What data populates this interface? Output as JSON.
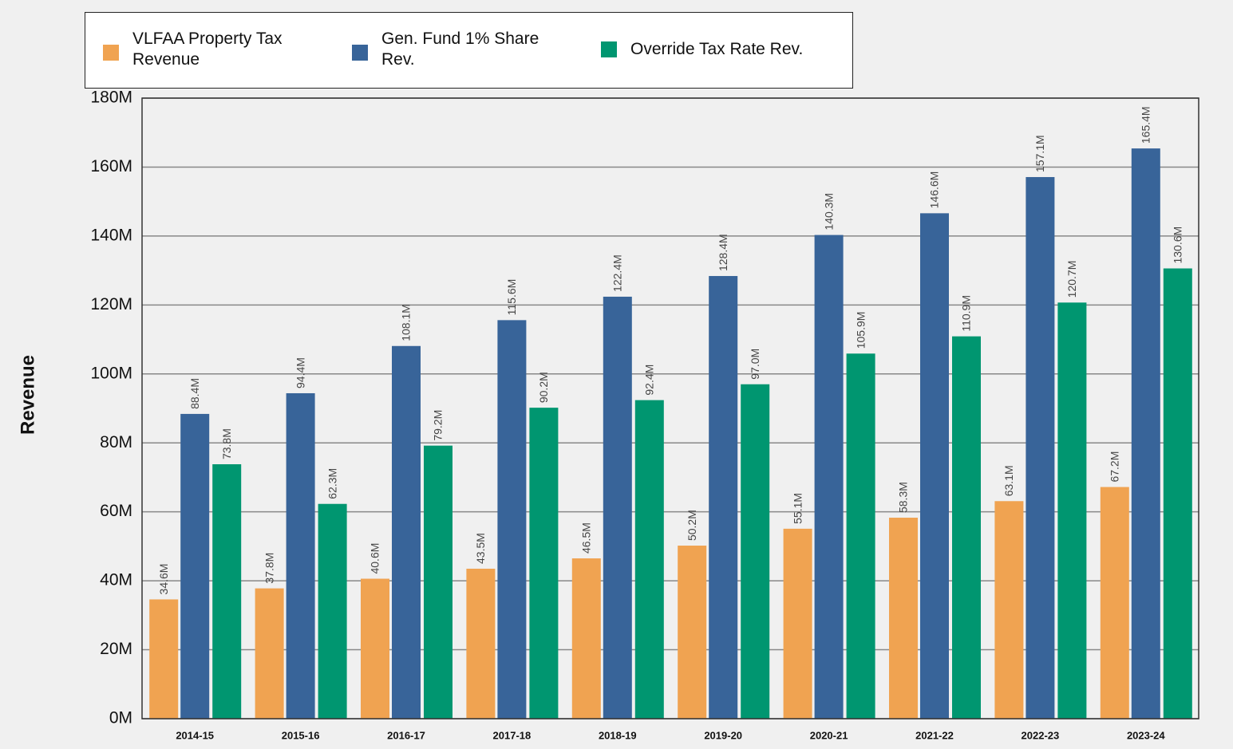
{
  "chart_data": {
    "type": "bar",
    "ylabel": "Revenue",
    "categories": [
      "2014-15",
      "2015-16",
      "2016-17",
      "2017-18",
      "2018-19",
      "2019-20",
      "2020-21",
      "2021-22",
      "2022-23",
      "2023-24"
    ],
    "series": [
      {
        "name": "VLFAA Property Tax Revenue",
        "color": "#f0a351",
        "values": [
          34.6,
          37.8,
          40.6,
          43.5,
          46.5,
          50.2,
          55.1,
          58.3,
          63.1,
          67.2
        ],
        "value_labels": [
          "34.6M",
          "37.8M",
          "40.6M",
          "43.5M",
          "46.5M",
          "50.2M",
          "55.1M",
          "58.3M",
          "63.1M",
          "67.2M"
        ]
      },
      {
        "name": "Gen. Fund 1% Share Rev.",
        "color": "#386499",
        "values": [
          88.4,
          94.4,
          108.1,
          115.6,
          122.4,
          128.4,
          140.3,
          146.6,
          157.1,
          165.4
        ],
        "value_labels": [
          "88.4M",
          "94.4M",
          "108.1M",
          "115.6M",
          "122.4M",
          "128.4M",
          "140.3M",
          "146.6M",
          "157.1M",
          "165.4M"
        ]
      },
      {
        "name": "Override Tax Rate Rev.",
        "color": "#009670",
        "values": [
          73.8,
          62.3,
          79.2,
          90.2,
          92.4,
          97.0,
          105.9,
          110.9,
          120.7,
          130.6
        ],
        "value_labels": [
          "73.8M",
          "62.3M",
          "79.2M",
          "90.2M",
          "92.4M",
          "97.0M",
          "105.9M",
          "110.9M",
          "120.7M",
          "130.6M"
        ]
      }
    ],
    "ylim": [
      0,
      180
    ],
    "yticks": [
      {
        "value": 0,
        "label": "0M"
      },
      {
        "value": 20,
        "label": "20M"
      },
      {
        "value": 40,
        "label": "40M"
      },
      {
        "value": 60,
        "label": "60M"
      },
      {
        "value": 80,
        "label": "80M"
      },
      {
        "value": 100,
        "label": "100M"
      },
      {
        "value": 120,
        "label": "120M"
      },
      {
        "value": 140,
        "label": "140M"
      },
      {
        "value": 160,
        "label": "160M"
      },
      {
        "value": 180,
        "label": "180M"
      }
    ],
    "grid": true
  }
}
